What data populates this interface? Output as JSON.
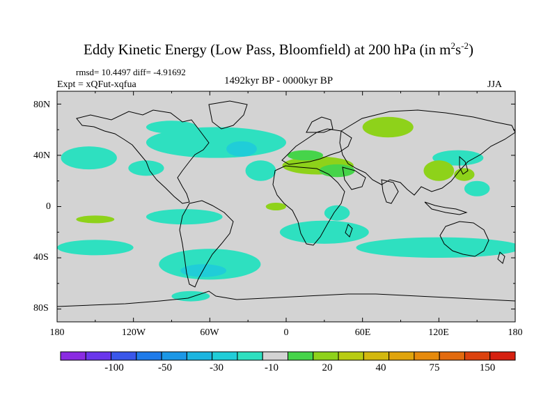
{
  "figure": {
    "title_main": "Eddy Kinetic Energy (Low Pass, Bloomfield) at 200 hPa (in m",
    "title_exp1": "2",
    "title_mid": "s",
    "title_exp2": "-2",
    "title_end": ")",
    "stats": "rmsd= 10.4497 diff= -4.91692",
    "experiment": "Expt = xQFut-xqfua",
    "period": "1492kyr BP - 0000kyr BP",
    "season": "JJA"
  },
  "axes": {
    "lat_labels": [
      "80N",
      "40N",
      "0",
      "40S",
      "80S"
    ],
    "lon_labels": [
      "180",
      "120W",
      "60W",
      "0",
      "60E",
      "120E",
      "180"
    ]
  },
  "colorbar": {
    "colors": [
      "#8a2be2",
      "#6a36ec",
      "#3a57ea",
      "#1f7bea",
      "#1b97e6",
      "#1cb5e0",
      "#20cdd8",
      "#2ee0c0",
      "#d3d3d3",
      "#46d44a",
      "#8ed21a",
      "#b8cc12",
      "#d3b80e",
      "#e0a40c",
      "#e68a0c",
      "#e26a0e",
      "#dc420e",
      "#d62010"
    ],
    "labels": [
      "-100",
      "-50",
      "-30",
      "-10",
      "20",
      "40",
      "75",
      "150"
    ]
  },
  "map": {
    "background_color": "#d3d3d3",
    "anomaly_patches": [
      {
        "lon": -155,
        "lat": 38,
        "rx": 22,
        "ry": 9,
        "color": "#2ee0c0"
      },
      {
        "lon": -110,
        "lat": 30,
        "rx": 14,
        "ry": 6,
        "color": "#2ee0c0"
      },
      {
        "lon": -55,
        "lat": 50,
        "rx": 55,
        "ry": 12,
        "color": "#2ee0c0"
      },
      {
        "lon": -35,
        "lat": 45,
        "rx": 12,
        "ry": 6,
        "color": "#20cdd8"
      },
      {
        "lon": -20,
        "lat": 28,
        "rx": 12,
        "ry": 8,
        "color": "#2ee0c0"
      },
      {
        "lon": -90,
        "lat": 62,
        "rx": 20,
        "ry": 5,
        "color": "#2ee0c0"
      },
      {
        "lon": 25,
        "lat": 32,
        "rx": 28,
        "ry": 7,
        "color": "#8ed21a"
      },
      {
        "lon": 40,
        "lat": 28,
        "rx": 14,
        "ry": 5,
        "color": "#46d44a"
      },
      {
        "lon": 15,
        "lat": 40,
        "rx": 14,
        "ry": 4,
        "color": "#46d44a"
      },
      {
        "lon": 80,
        "lat": 62,
        "rx": 20,
        "ry": 8,
        "color": "#8ed21a"
      },
      {
        "lon": 135,
        "lat": 38,
        "rx": 20,
        "ry": 6,
        "color": "#2ee0c0"
      },
      {
        "lon": 120,
        "lat": 28,
        "rx": 12,
        "ry": 8,
        "color": "#8ed21a"
      },
      {
        "lon": 150,
        "lat": 14,
        "rx": 10,
        "ry": 6,
        "color": "#2ee0c0"
      },
      {
        "lon": 140,
        "lat": 25,
        "rx": 8,
        "ry": 5,
        "color": "#8ed21a"
      },
      {
        "lon": -8,
        "lat": 0,
        "rx": 8,
        "ry": 3,
        "color": "#8ed21a"
      },
      {
        "lon": -150,
        "lat": -10,
        "rx": 15,
        "ry": 3,
        "color": "#8ed21a"
      },
      {
        "lon": -80,
        "lat": -8,
        "rx": 30,
        "ry": 6,
        "color": "#2ee0c0"
      },
      {
        "lon": 30,
        "lat": -20,
        "rx": 35,
        "ry": 9,
        "color": "#2ee0c0"
      },
      {
        "lon": 40,
        "lat": -5,
        "rx": 10,
        "ry": 6,
        "color": "#2ee0c0"
      },
      {
        "lon": -150,
        "lat": -32,
        "rx": 30,
        "ry": 6,
        "color": "#2ee0c0"
      },
      {
        "lon": 120,
        "lat": -32,
        "rx": 65,
        "ry": 8,
        "color": "#2ee0c0"
      },
      {
        "lon": -60,
        "lat": -45,
        "rx": 40,
        "ry": 12,
        "color": "#2ee0c0"
      },
      {
        "lon": -65,
        "lat": -50,
        "rx": 18,
        "ry": 5,
        "color": "#20cdd8"
      },
      {
        "lon": -75,
        "lat": -70,
        "rx": 15,
        "ry": 4,
        "color": "#2ee0c0"
      }
    ]
  }
}
